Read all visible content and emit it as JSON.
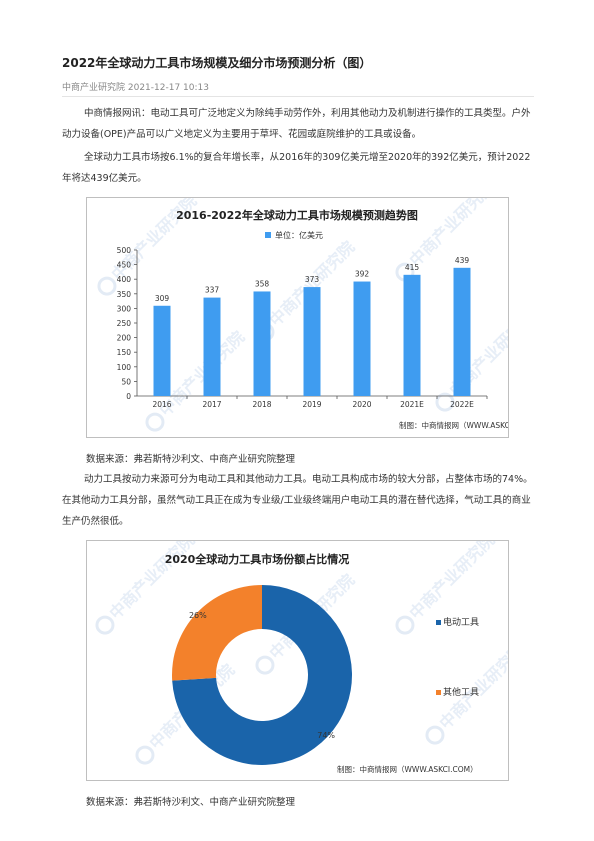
{
  "article": {
    "title": "2022年全球动力工具市场规模及细分市场预测分析（图）",
    "meta": "中商产业研究院 2021-12-17 10:13",
    "para1": "中商情报网讯：电动工具可广泛地定义为除纯手动劳作外，利用其他动力及机制进行操作的工具类型。户外动力设备(OPE)产品可以广义地定义为主要用于草坪、花园或庭院维护的工具或设备。",
    "para2": "全球动力工具市场按6.1%的复合年增长率，从2016年的309亿美元增至2020年的392亿美元，预计2022年将达439亿美元。",
    "source1": "数据来源：弗若斯特沙利文、中商产业研究院整理",
    "para3": "动力工具按动力来源可分为电动工具和其他动力工具。电动工具构成市场的较大分部，占整体市场的74%。在其他动力工具分部，虽然气动工具正在成为专业级/工业级终端用户电动工具的潜在替代选择，气动工具的商业生产仍然很低。",
    "source2": "数据来源：弗若斯特沙利文、中商产业研究院整理"
  },
  "watermark": {
    "text": "中商产业研究院"
  },
  "chart_data": [
    {
      "type": "bar",
      "title": "2016-2022年全球动力工具市场规模预测趋势图",
      "categories": [
        "2016",
        "2017",
        "2018",
        "2019",
        "2020",
        "2021E",
        "2022E"
      ],
      "series": [
        {
          "name": "单位：亿美元",
          "values": [
            309,
            337,
            358,
            373,
            392,
            415,
            439
          ]
        }
      ],
      "ylim": [
        0,
        500
      ],
      "yticks": [
        "0",
        "50",
        "100",
        "150",
        "200",
        "250",
        "300",
        "350",
        "400",
        "450",
        "500"
      ],
      "bar_color": "#3f9cf0",
      "legend": "top",
      "footer": "制图：中商情报网（WWW.ASKCI.COM）"
    },
    {
      "type": "pie",
      "title": "2020全球动力工具市场份额占比情况",
      "slices": [
        {
          "name": "电动工具",
          "value": 74,
          "label": "74%",
          "color": "#1a64aa"
        },
        {
          "name": "其他工具",
          "value": 26,
          "label": "26%",
          "color": "#f3812b"
        }
      ],
      "legend": "right",
      "footer": "制图：中商情报网（WWW.ASKCI.COM）"
    }
  ]
}
